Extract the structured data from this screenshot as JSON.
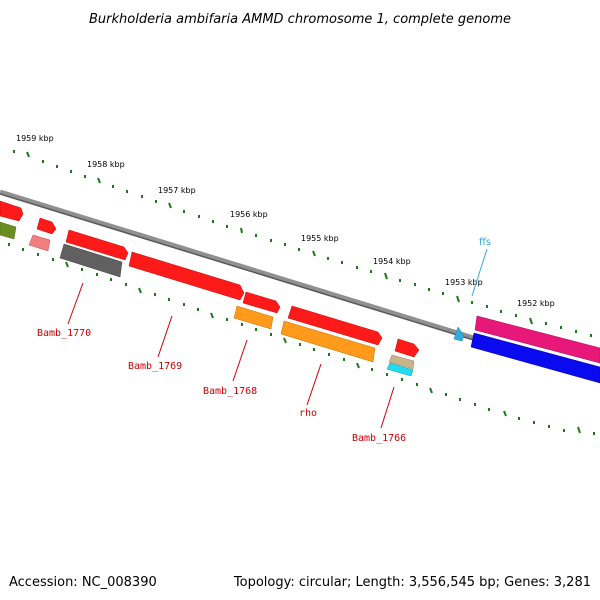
{
  "title": "Burkholderia ambifaria AMMD chromosome 1, complete genome",
  "footer": {
    "accession": "Accession: NC_008390",
    "summary": "Topology: circular; Length: 3,556,545 bp; Genes: 3,281"
  },
  "scale_labels": [
    "1959 kbp",
    "1958 kbp",
    "1957 kbp",
    "1956 kbp",
    "1955 kbp",
    "1954 kbp",
    "1953 kbp",
    "1952 kbp"
  ],
  "gene_labels": {
    "bamb_1770": "Bamb_1770",
    "bamb_1769": "Bamb_1769",
    "bamb_1768": "Bamb_1768",
    "rho": "rho",
    "bamb_1766": "Bamb_1766",
    "ffs": "ffs"
  },
  "colors": {
    "red": "#ff1a1a",
    "pink": "#f08080",
    "gray": "#606060",
    "orange": "#ff9a1a",
    "olive": "#6b8e23",
    "tan": "#c8b48a",
    "cyan": "#22ddee",
    "magenta": "#e8187a",
    "blue": "#0a0aee",
    "ffs": "#33aadd",
    "tick": "#1a7a1a",
    "backbone": "#808080",
    "label": "#cc0000"
  }
}
